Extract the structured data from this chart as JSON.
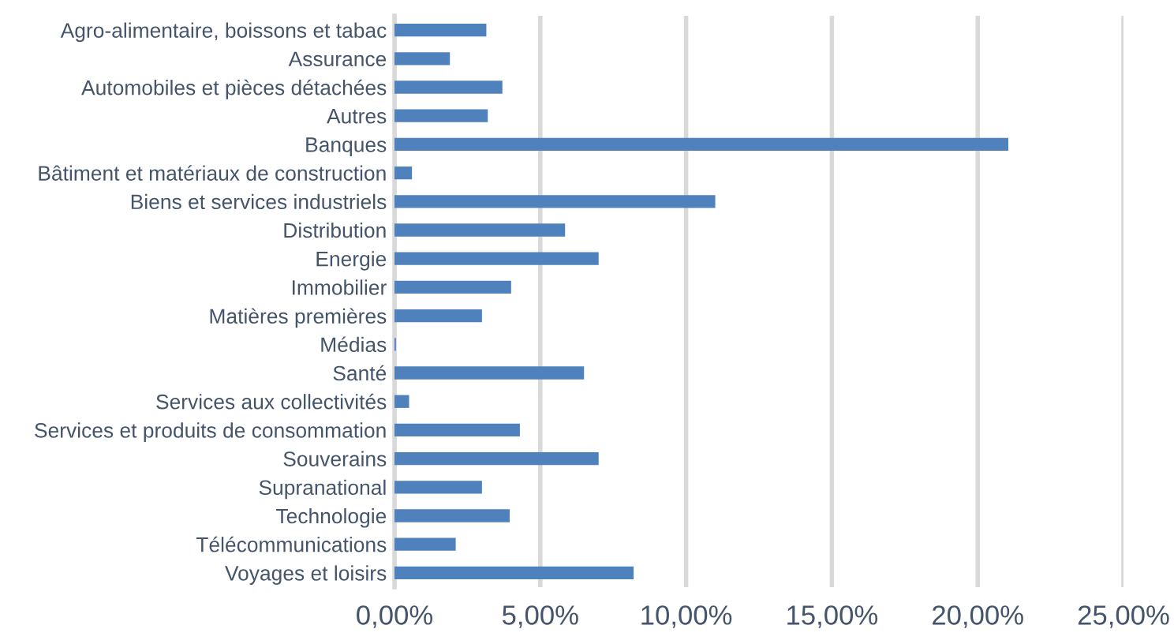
{
  "chart_data": {
    "type": "bar",
    "orientation": "horizontal",
    "categories": [
      "Agro-alimentaire, boissons et tabac",
      "Assurance",
      "Automobiles et pièces détachées",
      "Autres",
      "Banques",
      "Bâtiment et matériaux de construction",
      "Biens et services industriels",
      "Distribution",
      "Energie",
      "Immobilier",
      "Matières premières",
      "Médias",
      "Santé",
      "Services aux collectivités",
      "Services et produits de consommation",
      "Souverains",
      "Supranational",
      "Technologie",
      "Télécommunications",
      "Voyages et loisirs"
    ],
    "values": [
      3.15,
      1.9,
      3.7,
      3.2,
      21.05,
      0.6,
      11.0,
      5.85,
      7.0,
      4.0,
      3.0,
      0.05,
      6.5,
      0.5,
      4.3,
      7.0,
      3.0,
      3.95,
      2.1,
      8.2
    ],
    "color": "#4f81bd",
    "xlim": [
      0,
      25
    ],
    "xticks": [
      {
        "value": 0,
        "label": "0,00%"
      },
      {
        "value": 5,
        "label": "5,00%"
      },
      {
        "value": 10,
        "label": "10,00%"
      },
      {
        "value": 15,
        "label": "15,00%"
      },
      {
        "value": 20,
        "label": "20,00%"
      },
      {
        "value": 25,
        "label": "25,00%"
      }
    ],
    "grid": "x"
  }
}
